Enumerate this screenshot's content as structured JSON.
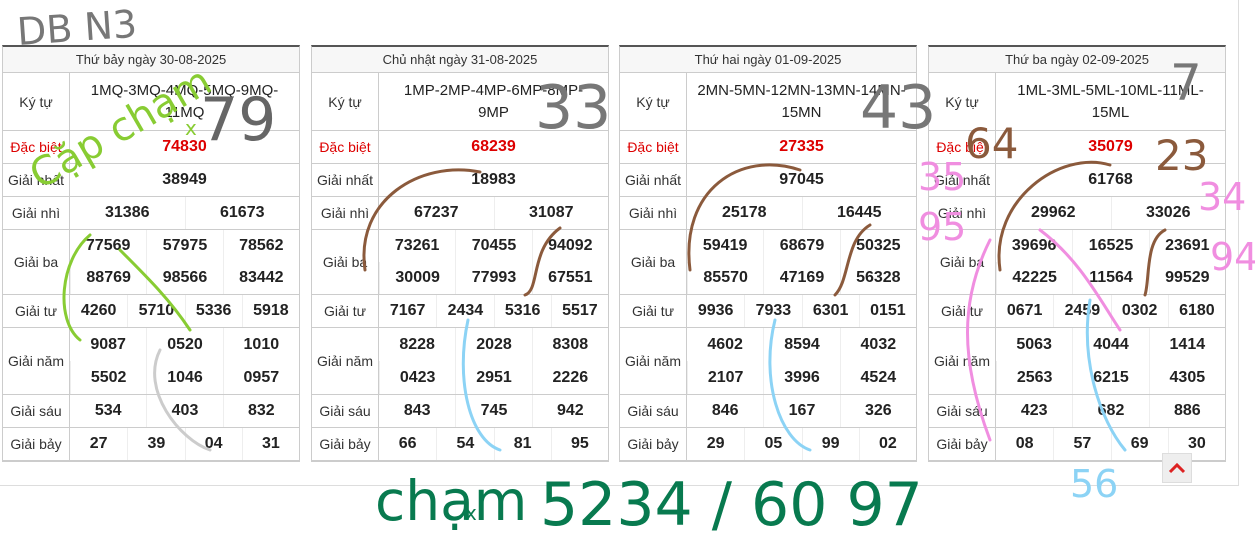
{
  "row_labels": [
    "Ký tự",
    "Đặc biệt",
    "Giải nhất",
    "Giải nhì",
    "Giải ba",
    "Giải tư",
    "Giải năm",
    "Giải sáu",
    "Giải bảy"
  ],
  "tables": [
    {
      "title": "Thứ bảy ngày 30-08-2025",
      "ky_tu": "1MQ-3MQ-4MQ-5MQ-9MQ-11MQ",
      "dac_biet": "74830",
      "nhat": "38949",
      "nhi": [
        "31386",
        "61673"
      ],
      "ba": [
        "77569",
        "57975",
        "78562",
        "88769",
        "98566",
        "83442"
      ],
      "tu": [
        "4260",
        "5710",
        "5336",
        "5918"
      ],
      "nam": [
        "9087",
        "0520",
        "1010",
        "5502",
        "1046",
        "0957"
      ],
      "sau": [
        "534",
        "403",
        "832"
      ],
      "bay": [
        "27",
        "39",
        "04",
        "31"
      ]
    },
    {
      "title": "Chủ nhật ngày 31-08-2025",
      "ky_tu": "1MP-2MP-4MP-6MP-8MP-9MP",
      "dac_biet": "68239",
      "nhat": "18983",
      "nhi": [
        "67237",
        "31087"
      ],
      "ba": [
        "73261",
        "70455",
        "94092",
        "30009",
        "77993",
        "67551"
      ],
      "tu": [
        "7167",
        "2434",
        "5316",
        "5517"
      ],
      "nam": [
        "8228",
        "2028",
        "8308",
        "0423",
        "2951",
        "2226"
      ],
      "sau": [
        "843",
        "745",
        "942"
      ],
      "bay": [
        "66",
        "54",
        "81",
        "95"
      ]
    },
    {
      "title": "Thứ hai ngày 01-09-2025",
      "ky_tu": "2MN-5MN-12MN-13MN-14MN-15MN",
      "dac_biet": "27335",
      "nhat": "97045",
      "nhi": [
        "25178",
        "16445"
      ],
      "ba": [
        "59419",
        "68679",
        "50325",
        "85570",
        "47169",
        "56328"
      ],
      "tu": [
        "9936",
        "7933",
        "6301",
        "0151"
      ],
      "nam": [
        "4602",
        "8594",
        "4032",
        "2107",
        "3996",
        "4524"
      ],
      "sau": [
        "846",
        "167",
        "326"
      ],
      "bay": [
        "29",
        "05",
        "99",
        "02"
      ]
    },
    {
      "title": "Thứ ba ngày 02-09-2025",
      "ky_tu": "1ML-3ML-5ML-10ML-11ML-15ML",
      "dac_biet": "35079",
      "nhat": "61768",
      "nhi": [
        "29962",
        "33026"
      ],
      "ba": [
        "39696",
        "16525",
        "23691",
        "42225",
        "11564",
        "99529"
      ],
      "tu": [
        "0671",
        "2459",
        "0302",
        "6180"
      ],
      "nam": [
        "5063",
        "4044",
        "1414",
        "2563",
        "6215",
        "4305"
      ],
      "sau": [
        "423",
        "682",
        "886"
      ],
      "bay": [
        "08",
        "57",
        "69",
        "30"
      ]
    }
  ],
  "annotations": [
    "DB N3",
    "79",
    "33",
    "43",
    "7",
    "Cặp chạm",
    "x",
    "chạm",
    "x",
    "5234 / 60 97",
    "64",
    "23",
    "35",
    "95",
    "34",
    "94",
    "56"
  ]
}
